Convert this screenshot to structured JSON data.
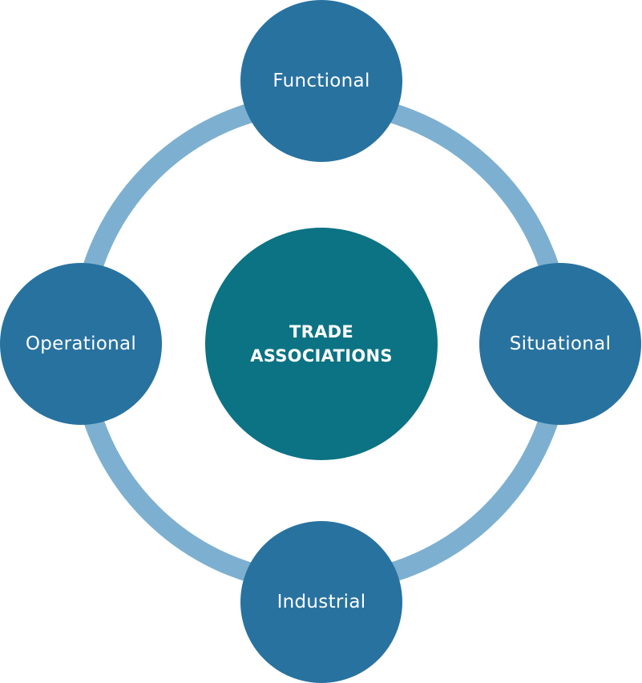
{
  "diagram": {
    "center": {
      "line1": "TRADE",
      "line2": "ASSOCIATIONS"
    },
    "nodes": {
      "top": "Functional",
      "right": "Situational",
      "bottom": "Industrial",
      "left": "Operational"
    },
    "colors": {
      "ring": "#7db0d0",
      "outer_node": "#2872a0",
      "center_node": "#0b7383",
      "text": "#ffffff"
    }
  }
}
